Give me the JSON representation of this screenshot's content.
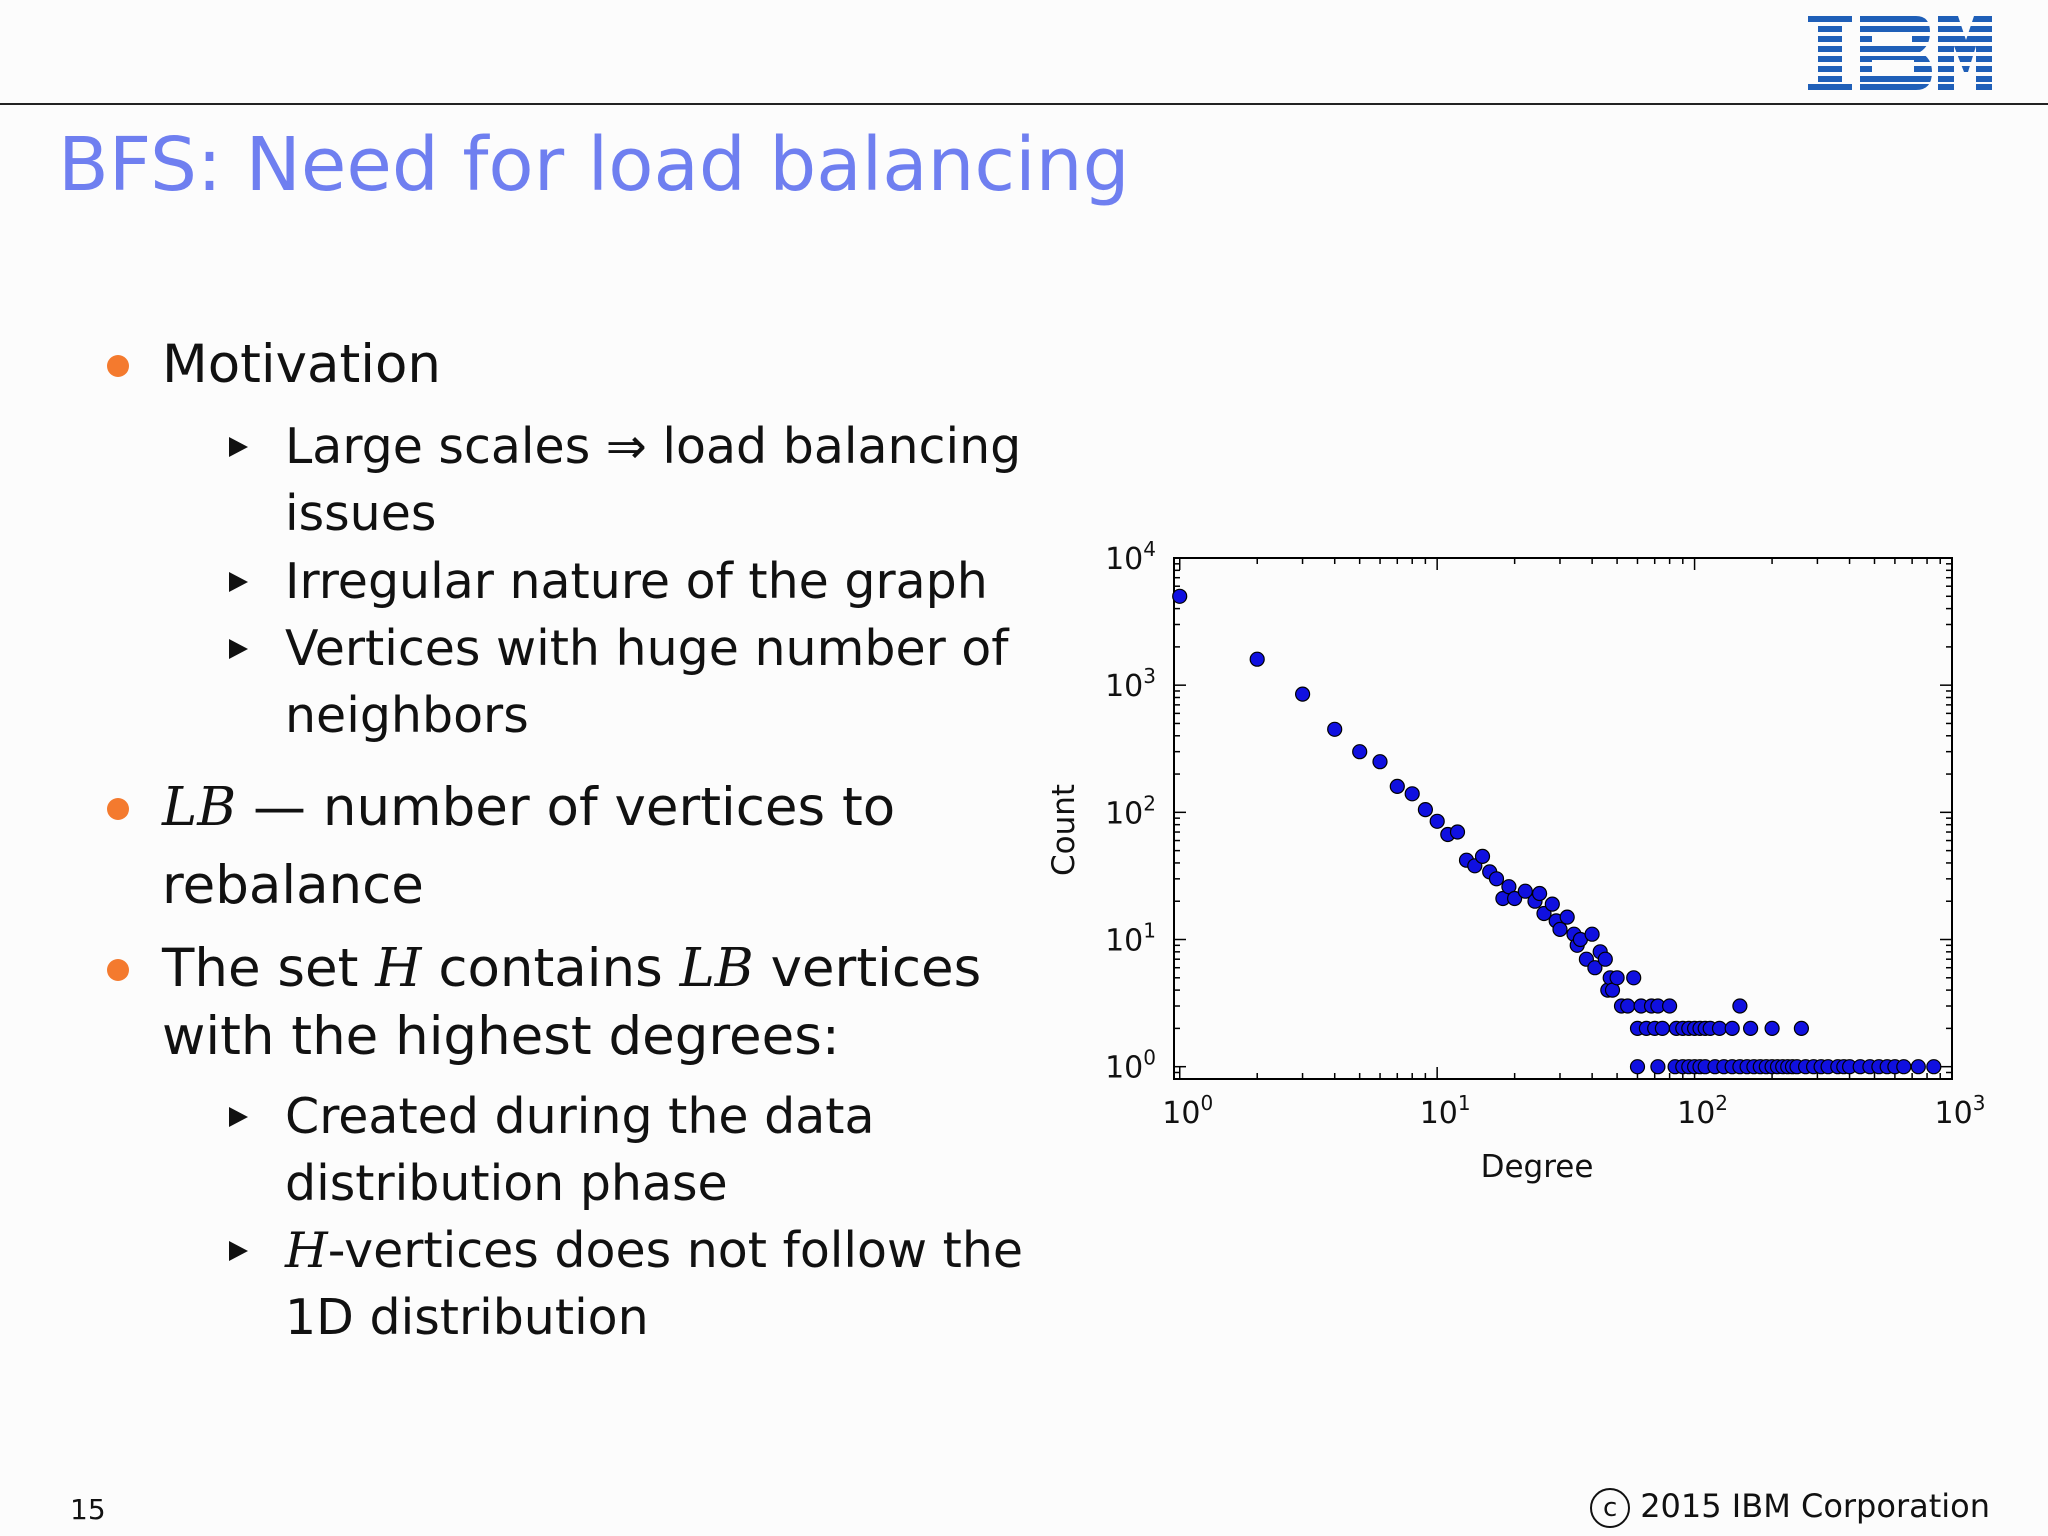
{
  "header": {
    "logo_text": "IBM",
    "title": "BFS: Need for load balancing"
  },
  "content": {
    "b1": {
      "label": "Motivation"
    },
    "b1_sub1_line1": "Large scales ⇒ load balancing",
    "b1_sub1_line2": "issues",
    "b1_sub2": "Irregular nature of the graph",
    "b1_sub3_line1": "Vertices with huge number of",
    "b1_sub3_line2": "neighbors",
    "b2_var": "LB",
    "b2_line1_rest": " — number of vertices to",
    "b2_line2": "rebalance",
    "b3_pre": "The set ",
    "b3_var_h": "H",
    "b3_mid": " contains ",
    "b3_var_lb": "LB",
    "b3_post": " vertices",
    "b3_line2": "with the highest degrees:",
    "b3_sub1_line1": "Created during the data",
    "b3_sub1_line2": "distribution phase",
    "b3_sub2_var": "H",
    "b3_sub2_line1_rest": "-vertices does not follow the",
    "b3_sub2_line2": "1D distribution"
  },
  "chart_data": {
    "type": "scatter",
    "title": "",
    "xlabel": "Degree",
    "ylabel": "Count",
    "xscale": "log",
    "yscale": "log",
    "xlim": [
      0.95,
      1000
    ],
    "ylim": [
      0.8,
      10000
    ],
    "xticks": [
      {
        "value": 1,
        "label_base": "10",
        "label_exp": "0"
      },
      {
        "value": 10,
        "label_base": "10",
        "label_exp": "1"
      },
      {
        "value": 100,
        "label_base": "10",
        "label_exp": "2"
      },
      {
        "value": 1000,
        "label_base": "10",
        "label_exp": "3"
      }
    ],
    "yticks": [
      {
        "value": 1,
        "label_base": "10",
        "label_exp": "0"
      },
      {
        "value": 10,
        "label_base": "10",
        "label_exp": "1"
      },
      {
        "value": 100,
        "label_base": "10",
        "label_exp": "2"
      },
      {
        "value": 1000,
        "label_base": "10",
        "label_exp": "3"
      },
      {
        "value": 10000,
        "label_base": "10",
        "label_exp": "4"
      }
    ],
    "marker_color": "#1010e0",
    "points": [
      [
        1,
        5000
      ],
      [
        2,
        1600
      ],
      [
        3,
        850
      ],
      [
        4,
        450
      ],
      [
        5,
        300
      ],
      [
        6,
        250
      ],
      [
        7,
        160
      ],
      [
        8,
        140
      ],
      [
        9,
        105
      ],
      [
        10,
        85
      ],
      [
        11,
        67
      ],
      [
        12,
        70
      ],
      [
        13,
        42
      ],
      [
        14,
        38
      ],
      [
        15,
        45
      ],
      [
        16,
        34
      ],
      [
        17,
        30
      ],
      [
        18,
        21
      ],
      [
        19,
        26
      ],
      [
        20,
        21
      ],
      [
        22,
        24
      ],
      [
        24,
        20
      ],
      [
        25,
        23
      ],
      [
        26,
        16
      ],
      [
        28,
        19
      ],
      [
        29,
        14
      ],
      [
        30,
        12
      ],
      [
        32,
        15
      ],
      [
        34,
        11
      ],
      [
        35,
        9
      ],
      [
        36,
        10
      ],
      [
        38,
        7
      ],
      [
        40,
        11
      ],
      [
        41,
        6
      ],
      [
        43,
        8
      ],
      [
        45,
        7
      ],
      [
        46,
        4
      ],
      [
        47,
        5
      ],
      [
        48,
        4
      ],
      [
        50,
        5
      ],
      [
        52,
        3
      ],
      [
        55,
        3
      ],
      [
        58,
        5
      ],
      [
        60,
        2
      ],
      [
        62,
        3
      ],
      [
        65,
        2
      ],
      [
        68,
        3
      ],
      [
        70,
        2
      ],
      [
        72,
        3
      ],
      [
        75,
        2
      ],
      [
        80,
        3
      ],
      [
        85,
        2
      ],
      [
        90,
        2
      ],
      [
        95,
        2
      ],
      [
        100,
        2
      ],
      [
        105,
        2
      ],
      [
        110,
        2
      ],
      [
        115,
        2
      ],
      [
        125,
        2
      ],
      [
        140,
        2
      ],
      [
        150,
        3
      ],
      [
        165,
        2
      ],
      [
        200,
        2
      ],
      [
        260,
        2
      ],
      [
        60,
        1
      ],
      [
        72,
        1
      ],
      [
        84,
        1
      ],
      [
        90,
        1
      ],
      [
        95,
        1
      ],
      [
        100,
        1
      ],
      [
        105,
        1
      ],
      [
        110,
        1
      ],
      [
        120,
        1
      ],
      [
        130,
        1
      ],
      [
        140,
        1
      ],
      [
        150,
        1
      ],
      [
        160,
        1
      ],
      [
        170,
        1
      ],
      [
        180,
        1
      ],
      [
        190,
        1
      ],
      [
        200,
        1
      ],
      [
        210,
        1
      ],
      [
        220,
        1
      ],
      [
        230,
        1
      ],
      [
        240,
        1
      ],
      [
        250,
        1
      ],
      [
        270,
        1
      ],
      [
        290,
        1
      ],
      [
        310,
        1
      ],
      [
        330,
        1
      ],
      [
        360,
        1
      ],
      [
        380,
        1
      ],
      [
        400,
        1
      ],
      [
        440,
        1
      ],
      [
        480,
        1
      ],
      [
        520,
        1
      ],
      [
        560,
        1
      ],
      [
        600,
        1
      ],
      [
        650,
        1
      ],
      [
        740,
        1
      ],
      [
        850,
        1
      ]
    ]
  },
  "footer": {
    "page_number": "15",
    "copyright_symbol": "c",
    "copyright_text": "2015 IBM Corporation"
  }
}
